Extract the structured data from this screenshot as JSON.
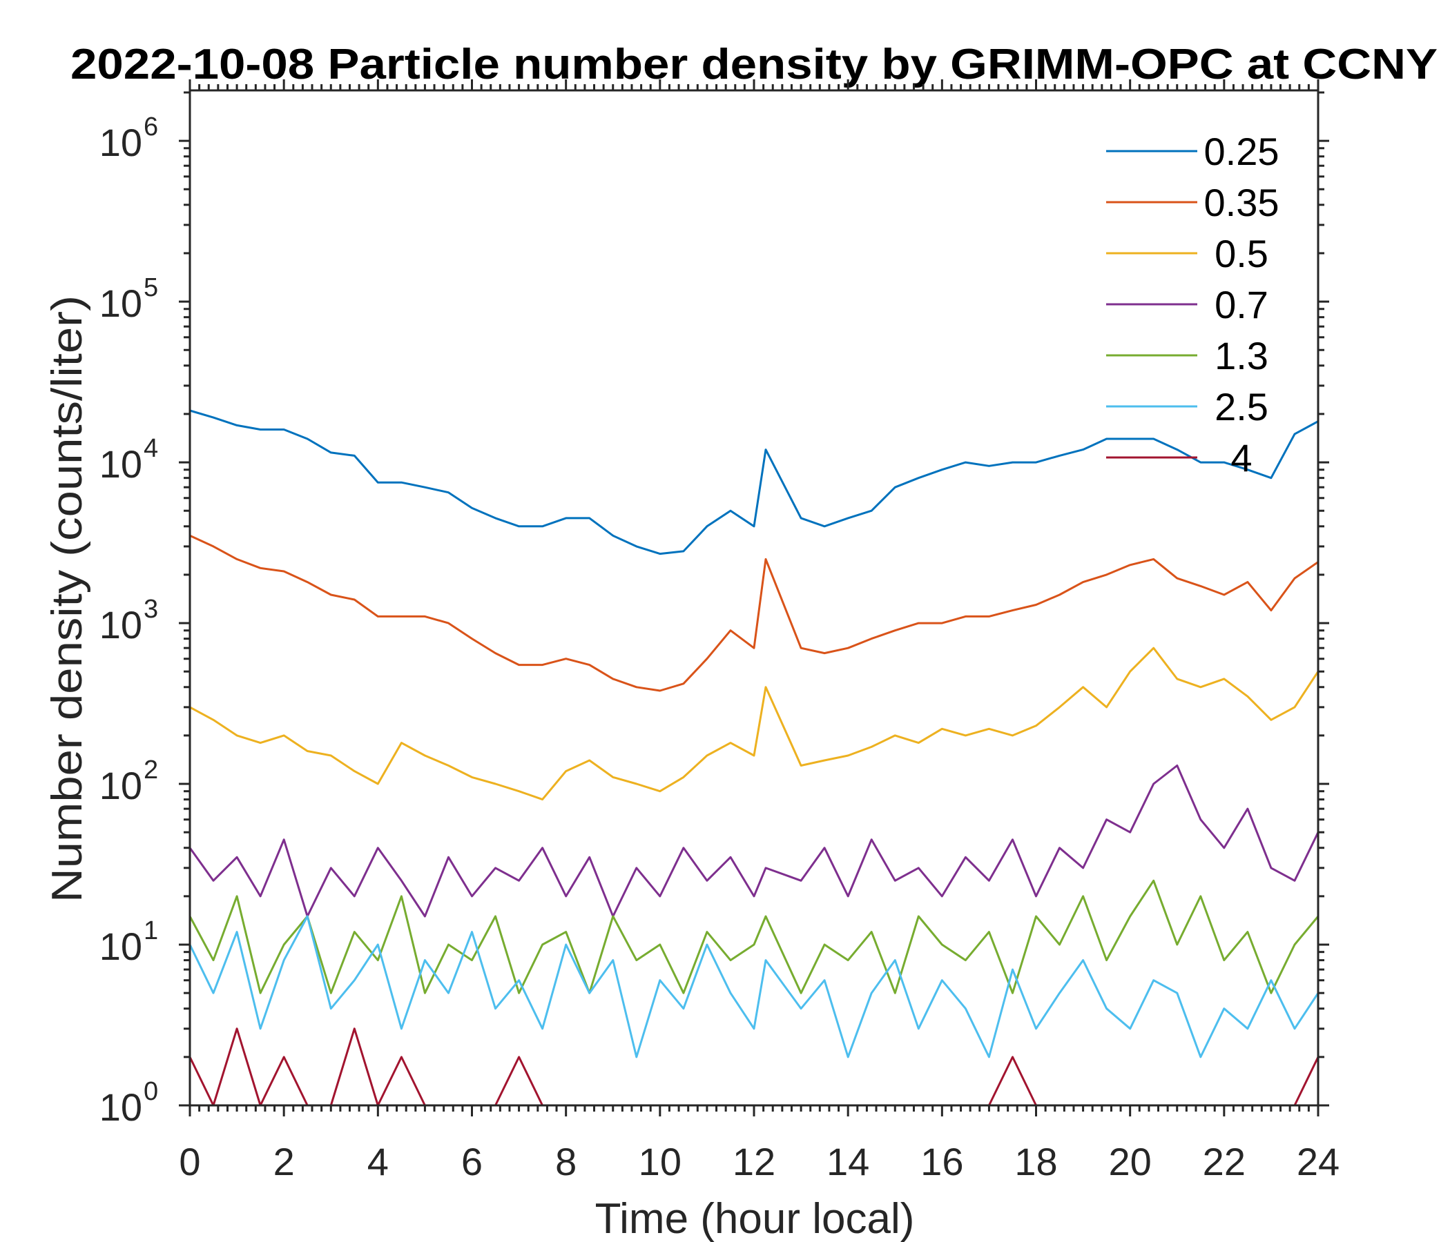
{
  "chart_data": {
    "type": "line",
    "title": "2022-10-08 Particle number density by GRIMM-OPC at CCNY",
    "xlabel": "Time (hour local)",
    "ylabel": "Number density (counts/liter)",
    "xlim": [
      0,
      24
    ],
    "ylim": [
      1,
      2060000
    ],
    "yscale": "log",
    "grid": false,
    "legend_position": "top-right",
    "xticks": [
      "0",
      "2",
      "4",
      "6",
      "8",
      "10",
      "12",
      "14",
      "16",
      "18",
      "20",
      "22",
      "24"
    ],
    "yticks": [
      {
        "base": "10",
        "exp": "0"
      },
      {
        "base": "10",
        "exp": "1"
      },
      {
        "base": "10",
        "exp": "2"
      },
      {
        "base": "10",
        "exp": "3"
      },
      {
        "base": "10",
        "exp": "4"
      },
      {
        "base": "10",
        "exp": "5"
      },
      {
        "base": "10",
        "exp": "6"
      }
    ],
    "x": [
      0,
      0.5,
      1,
      1.5,
      2,
      2.5,
      3,
      3.5,
      4,
      4.5,
      5,
      5.5,
      6,
      6.5,
      7,
      7.5,
      8,
      8.5,
      9,
      9.5,
      10,
      10.5,
      11,
      11.5,
      12,
      12.25,
      13,
      13.5,
      14,
      14.5,
      15,
      15.5,
      16,
      16.5,
      17,
      17.5,
      18,
      18.5,
      19,
      19.5,
      20,
      20.5,
      21,
      21.5,
      22,
      22.5,
      23,
      23.5,
      24
    ],
    "series": [
      {
        "name": "0.25",
        "color": "#0072BD",
        "values": [
          21000,
          19000,
          17000,
          16000,
          16000,
          14000,
          11500,
          11000,
          7500,
          7500,
          7000,
          6500,
          5200,
          4500,
          4000,
          4000,
          4500,
          4500,
          3500,
          3000,
          2700,
          2800,
          4000,
          5000,
          4000,
          12000,
          4500,
          4000,
          4500,
          5000,
          7000,
          8000,
          9000,
          10000,
          9500,
          10000,
          10000,
          11000,
          12000,
          14000,
          14000,
          14000,
          12000,
          10000,
          10000,
          9000,
          8000,
          15000,
          18000
        ]
      },
      {
        "name": "0.35",
        "color": "#D95319",
        "values": [
          3500,
          3000,
          2500,
          2200,
          2100,
          1800,
          1500,
          1400,
          1100,
          1100,
          1100,
          1000,
          800,
          650,
          550,
          550,
          600,
          550,
          450,
          400,
          380,
          420,
          600,
          900,
          700,
          2500,
          700,
          650,
          700,
          800,
          900,
          1000,
          1000,
          1100,
          1100,
          1200,
          1300,
          1500,
          1800,
          2000,
          2300,
          2500,
          1900,
          1700,
          1500,
          1800,
          1200,
          1900,
          2400
        ]
      },
      {
        "name": "0.5",
        "color": "#EDB120",
        "values": [
          300,
          250,
          200,
          180,
          200,
          160,
          150,
          120,
          100,
          180,
          150,
          130,
          110,
          100,
          90,
          80,
          120,
          140,
          110,
          100,
          90,
          110,
          150,
          180,
          150,
          400,
          130,
          140,
          150,
          170,
          200,
          180,
          220,
          200,
          220,
          200,
          230,
          300,
          400,
          300,
          500,
          700,
          450,
          400,
          450,
          350,
          250,
          300,
          500
        ]
      },
      {
        "name": "0.7",
        "color": "#7E2F8E",
        "values": [
          40,
          25,
          35,
          20,
          45,
          15,
          30,
          20,
          40,
          25,
          15,
          35,
          20,
          30,
          25,
          40,
          20,
          35,
          15,
          30,
          20,
          40,
          25,
          35,
          20,
          30,
          25,
          40,
          20,
          45,
          25,
          30,
          20,
          35,
          25,
          45,
          20,
          40,
          30,
          60,
          50,
          100,
          130,
          60,
          40,
          70,
          30,
          25,
          50
        ]
      },
      {
        "name": "1.3",
        "color": "#77AC30",
        "values": [
          15,
          8,
          20,
          5,
          10,
          15,
          5,
          12,
          8,
          20,
          5,
          10,
          8,
          15,
          5,
          10,
          12,
          5,
          15,
          8,
          10,
          5,
          12,
          8,
          10,
          15,
          5,
          10,
          8,
          12,
          5,
          15,
          10,
          8,
          12,
          5,
          15,
          10,
          20,
          8,
          15,
          25,
          10,
          20,
          8,
          12,
          5,
          10,
          15
        ]
      },
      {
        "name": "2.5",
        "color": "#4DBEEE",
        "values": [
          10,
          5,
          12,
          3,
          8,
          15,
          4,
          6,
          10,
          3,
          8,
          5,
          12,
          4,
          6,
          3,
          10,
          5,
          8,
          2,
          6,
          4,
          10,
          5,
          3,
          8,
          4,
          6,
          2,
          5,
          8,
          3,
          6,
          4,
          2,
          7,
          3,
          5,
          8,
          4,
          3,
          6,
          5,
          2,
          4,
          3,
          6,
          3,
          5
        ]
      },
      {
        "name": "4",
        "color": "#A2142F",
        "values": [
          2,
          1,
          3,
          1,
          2,
          1,
          1,
          3,
          1,
          2,
          1,
          1,
          1,
          1,
          2,
          1,
          1,
          1,
          1,
          1,
          1,
          1,
          1,
          1,
          1,
          1,
          1,
          1,
          1,
          1,
          1,
          1,
          1,
          1,
          1,
          2,
          1,
          1,
          1,
          1,
          1,
          1,
          1,
          1,
          1,
          1,
          1,
          1,
          2
        ]
      }
    ]
  }
}
